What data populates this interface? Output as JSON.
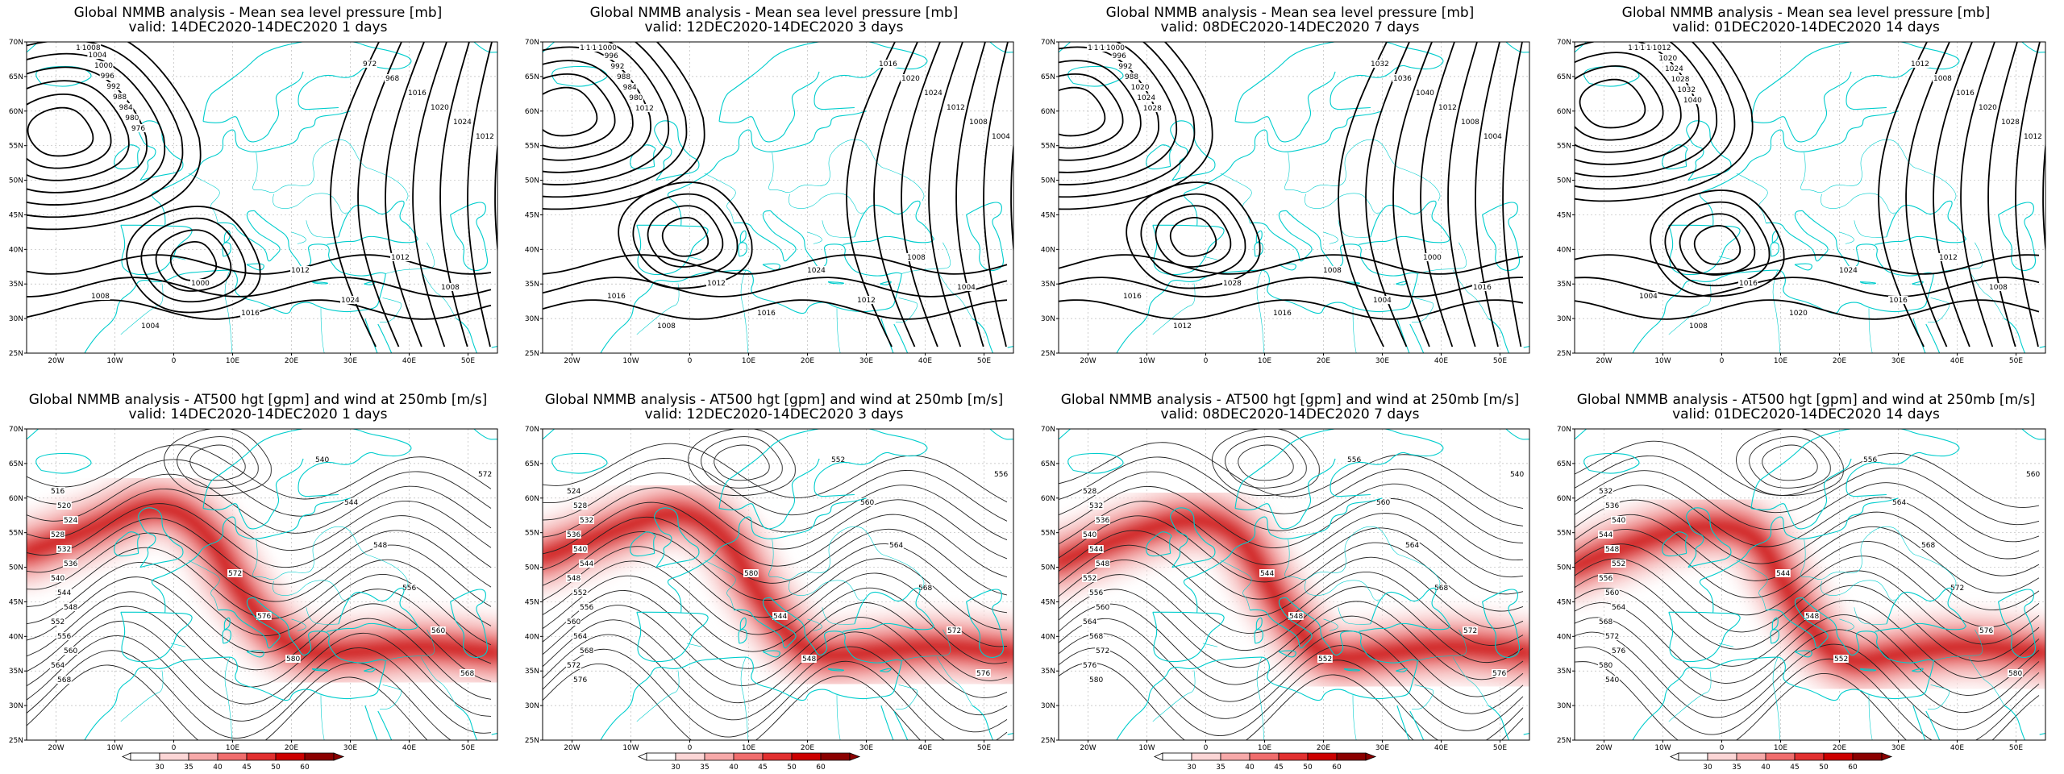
{
  "panels": [
    {
      "row": 0,
      "col": 0,
      "kind": "mslp",
      "title1": "Global NMMB analysis - Mean sea level pressure [mb]",
      "title2": "valid: 14DEC2020-14DEC2020   1 days",
      "labels": [
        "1012",
        "1008",
        "1004",
        "1000",
        "996",
        "992",
        "988",
        "984",
        "980",
        "976",
        "972",
        "968",
        "1016",
        "1020",
        "1024",
        "1012",
        "1008",
        "1004",
        "1000",
        "1016",
        "1012",
        "1024",
        "1012",
        "1008"
      ]
    },
    {
      "row": 0,
      "col": 1,
      "kind": "mslp",
      "title1": "Global NMMB analysis - Mean sea level pressure [mb]",
      "title2": "valid: 12DEC2020-14DEC2020   3 days",
      "labels": [
        "1012",
        "1008",
        "1004",
        "1000",
        "996",
        "992",
        "988",
        "984",
        "980",
        "1012",
        "1016",
        "1020",
        "1024",
        "1012",
        "1008",
        "1004",
        "1016",
        "1008",
        "1012",
        "1016",
        "1024",
        "1012",
        "1008",
        "1004"
      ]
    },
    {
      "row": 0,
      "col": 2,
      "kind": "mslp",
      "title1": "Global NMMB analysis - Mean sea level pressure [mb]",
      "title2": "valid: 08DEC2020-14DEC2020   7 days",
      "labels": [
        "1012",
        "1008",
        "1004",
        "1000",
        "996",
        "992",
        "988",
        "1020",
        "1024",
        "1028",
        "1032",
        "1036",
        "1040",
        "1012",
        "1008",
        "1004",
        "1016",
        "1012",
        "1028",
        "1016",
        "1008",
        "1004",
        "1000",
        "1016"
      ]
    },
    {
      "row": 0,
      "col": 3,
      "kind": "mslp",
      "title1": "Global NMMB analysis - Mean sea level pressure [mb]",
      "title2": "valid: 01DEC2020-14DEC2020   14 days",
      "labels": [
        "1016",
        "1008",
        "1004",
        "1000",
        "1012",
        "1020",
        "1024",
        "1028",
        "1032",
        "1040",
        "1012",
        "1008",
        "1016",
        "1020",
        "1028",
        "1012",
        "1004",
        "1008",
        "1016",
        "1020",
        "1024",
        "1016",
        "1012",
        "1008"
      ]
    },
    {
      "row": 1,
      "col": 0,
      "kind": "z500",
      "title1": "Global NMMB analysis - AT500 hgt [gpm] and wind at 250mb [m/s]",
      "title2": "valid: 14DEC2020-14DEC2020   1 days",
      "labels": [
        "516",
        "520",
        "524",
        "528",
        "532",
        "536",
        "540",
        "544",
        "548",
        "552",
        "556",
        "560",
        "564",
        "568",
        "572",
        "576",
        "580",
        "540",
        "544",
        "548",
        "556",
        "560",
        "568",
        "572"
      ]
    },
    {
      "row": 1,
      "col": 1,
      "kind": "z500",
      "title1": "Global NMMB analysis - AT500 hgt [gpm] and wind at 250mb [m/s]",
      "title2": "valid: 12DEC2020-14DEC2020   3 days",
      "labels": [
        "524",
        "528",
        "532",
        "536",
        "540",
        "544",
        "548",
        "552",
        "556",
        "560",
        "564",
        "568",
        "572",
        "576",
        "580",
        "544",
        "548",
        "552",
        "560",
        "564",
        "568",
        "572",
        "576",
        "556"
      ]
    },
    {
      "row": 1,
      "col": 2,
      "kind": "z500",
      "title1": "Global NMMB analysis - AT500 hgt [gpm] and wind at 250mb [m/s]",
      "title2": "valid: 08DEC2020-14DEC2020   7 days",
      "labels": [
        "528",
        "532",
        "536",
        "540",
        "544",
        "548",
        "552",
        "556",
        "560",
        "564",
        "568",
        "572",
        "576",
        "580",
        "544",
        "548",
        "552",
        "556",
        "560",
        "564",
        "568",
        "572",
        "576",
        "540"
      ]
    },
    {
      "row": 1,
      "col": 3,
      "kind": "z500",
      "title1": "Global NMMB analysis - AT500 hgt [gpm] and wind at 250mb [m/s]",
      "title2": "valid: 01DEC2020-14DEC2020   14 days",
      "labels": [
        "532",
        "536",
        "540",
        "544",
        "548",
        "552",
        "556",
        "560",
        "564",
        "568",
        "572",
        "576",
        "580",
        "540",
        "544",
        "548",
        "552",
        "556",
        "564",
        "568",
        "572",
        "576",
        "580",
        "560"
      ]
    }
  ],
  "lat_labels": [
    "70N",
    "65N",
    "60N",
    "55N",
    "50N",
    "45N",
    "40N",
    "35N",
    "30N",
    "25N"
  ],
  "lon_labels": [
    "20W",
    "10W",
    "0",
    "10E",
    "20E",
    "30E",
    "40E",
    "50E"
  ],
  "colorbar": {
    "labels": [
      "30",
      "35",
      "40",
      "45",
      "50",
      "60"
    ],
    "colors": [
      "#ffffff",
      "#fcd6d6",
      "#f7a9a9",
      "#f06d6d",
      "#e23030",
      "#cc0000",
      "#8b0000"
    ]
  },
  "colors": {
    "coast": "#00cdcd",
    "contour": "#000000",
    "jet": "#e00000"
  }
}
